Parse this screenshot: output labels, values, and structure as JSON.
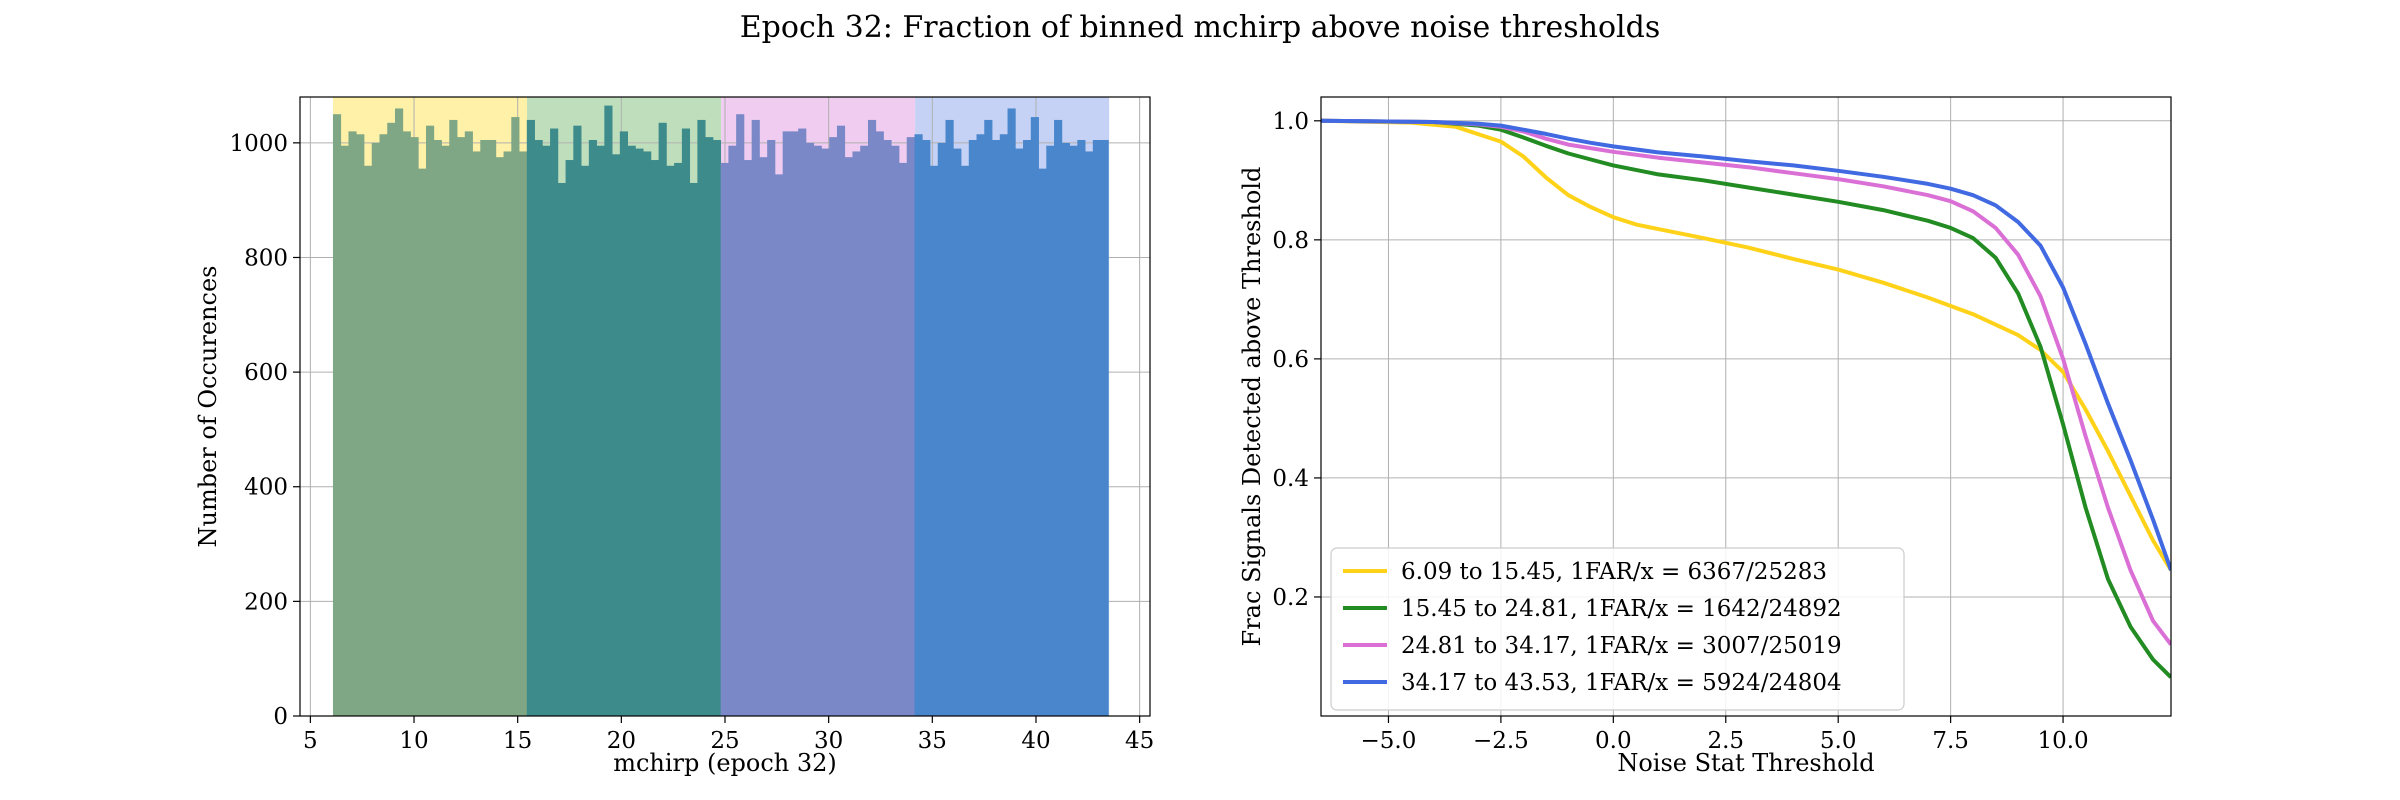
{
  "figure": {
    "title": "Epoch 32: Fraction of binned mchirp above noise thresholds"
  },
  "chart_data": [
    {
      "type": "bar",
      "xlabel": "mchirp (epoch 32)",
      "ylabel": "Number of Occurences",
      "xlim": [
        4.5,
        45.5
      ],
      "ylim": [
        0,
        1080
      ],
      "xticks": [
        5,
        10,
        15,
        20,
        25,
        30,
        35,
        40,
        45
      ],
      "yticks": [
        0,
        200,
        400,
        600,
        800,
        1000
      ],
      "grid": true,
      "bin_width": 0.374,
      "bands": [
        {
          "x0": 6.09,
          "x1": 15.45,
          "shade_color": "#fff1a8",
          "bar_color": "#7fa785"
        },
        {
          "x0": 15.45,
          "x1": 24.81,
          "shade_color": "#bfdfbc",
          "bar_color": "#3d8b8b"
        },
        {
          "x0": 24.81,
          "x1": 34.17,
          "shade_color": "#f0cdf0",
          "bar_color": "#7a88c8"
        },
        {
          "x0": 34.17,
          "x1": 43.53,
          "shade_color": "#c5d2f5",
          "bar_color": "#4a86cc"
        }
      ],
      "counts": [
        1050,
        995,
        1020,
        1015,
        960,
        1000,
        1015,
        1035,
        1060,
        1020,
        1010,
        955,
        1030,
        1005,
        995,
        1040,
        1010,
        1020,
        985,
        1005,
        1005,
        975,
        985,
        1045,
        985,
        1040,
        1005,
        995,
        1025,
        930,
        970,
        1030,
        960,
        1005,
        995,
        1065,
        980,
        1020,
        995,
        990,
        985,
        970,
        1035,
        960,
        965,
        1025,
        930,
        1040,
        1010,
        1005,
        965,
        995,
        1050,
        970,
        1040,
        975,
        1005,
        945,
        1020,
        1020,
        1025,
        1000,
        995,
        990,
        1010,
        1030,
        975,
        985,
        995,
        1040,
        1020,
        1005,
        995,
        965,
        1010,
        1015,
        1005,
        960,
        1000,
        1040,
        990,
        960,
        1005,
        1015,
        1040,
        1005,
        1015,
        1060,
        990,
        1005,
        1045,
        955,
        995,
        1040,
        1000,
        995,
        1005,
        985,
        1005,
        1005
      ]
    },
    {
      "type": "line",
      "xlabel": "Noise Stat Threshold",
      "ylabel": "Frac Signals Detected above Threshold",
      "xlim": [
        -6.5,
        12.4
      ],
      "ylim": [
        0.0,
        1.04
      ],
      "xticks": [
        -5.0,
        -2.5,
        0.0,
        2.5,
        5.0,
        7.5,
        10.0
      ],
      "yticks": [
        0.2,
        0.4,
        0.6,
        0.8,
        1.0
      ],
      "grid": true,
      "legend_position": "lower-left",
      "series": [
        {
          "name": "6.09 to 15.45, 1FAR/x = 6367/25283",
          "color": "#ffd21a",
          "x": [
            -6.5,
            -4.5,
            -3.5,
            -2.5,
            -2.0,
            -1.5,
            -1.0,
            -0.5,
            0.0,
            0.5,
            1.0,
            2.0,
            3.0,
            4.0,
            5.0,
            6.0,
            7.0,
            8.0,
            9.0,
            9.5,
            10.0,
            10.5,
            11.0,
            11.5,
            12.0,
            12.4
          ],
          "y": [
            1.0,
            0.997,
            0.99,
            0.965,
            0.94,
            0.905,
            0.875,
            0.855,
            0.838,
            0.826,
            0.818,
            0.803,
            0.787,
            0.768,
            0.75,
            0.728,
            0.703,
            0.675,
            0.64,
            0.615,
            0.578,
            0.515,
            0.445,
            0.37,
            0.295,
            0.245
          ]
        },
        {
          "name": "15.45 to 24.81, 1FAR/x = 1642/24892",
          "color": "#228b22",
          "x": [
            -6.5,
            -4.0,
            -3.0,
            -2.5,
            -2.0,
            -1.5,
            -1.0,
            -0.5,
            0.0,
            1.0,
            2.0,
            3.0,
            4.0,
            5.0,
            6.0,
            7.0,
            7.5,
            8.0,
            8.5,
            9.0,
            9.5,
            10.0,
            10.5,
            11.0,
            11.5,
            12.0,
            12.4
          ],
          "y": [
            1.0,
            0.998,
            0.992,
            0.985,
            0.972,
            0.958,
            0.945,
            0.935,
            0.925,
            0.91,
            0.9,
            0.888,
            0.876,
            0.864,
            0.85,
            0.832,
            0.82,
            0.803,
            0.77,
            0.71,
            0.62,
            0.49,
            0.35,
            0.23,
            0.15,
            0.095,
            0.065
          ]
        },
        {
          "name": "24.81 to 34.17, 1FAR/x = 3007/25019",
          "color": "#da70d6",
          "x": [
            -6.5,
            -4.0,
            -3.0,
            -2.5,
            -2.0,
            -1.5,
            -1.0,
            0.0,
            1.0,
            2.0,
            3.0,
            4.0,
            5.0,
            6.0,
            7.0,
            7.5,
            8.0,
            8.5,
            9.0,
            9.5,
            10.0,
            10.5,
            11.0,
            11.5,
            12.0,
            12.4
          ],
          "y": [
            1.0,
            0.998,
            0.994,
            0.99,
            0.982,
            0.97,
            0.96,
            0.948,
            0.938,
            0.93,
            0.922,
            0.912,
            0.902,
            0.89,
            0.875,
            0.865,
            0.848,
            0.82,
            0.775,
            0.705,
            0.6,
            0.47,
            0.35,
            0.245,
            0.16,
            0.12
          ]
        },
        {
          "name": "34.17 to 43.53, 1FAR/x = 5924/24804",
          "color": "#4169e1",
          "x": [
            -6.5,
            -4.0,
            -3.0,
            -2.5,
            -2.0,
            -1.5,
            -1.0,
            -0.5,
            0.0,
            1.0,
            2.0,
            3.0,
            4.0,
            5.0,
            6.0,
            7.0,
            7.5,
            8.0,
            8.5,
            9.0,
            9.5,
            10.0,
            10.5,
            11.0,
            11.5,
            12.0,
            12.4
          ],
          "y": [
            1.0,
            0.998,
            0.995,
            0.992,
            0.985,
            0.978,
            0.97,
            0.963,
            0.957,
            0.947,
            0.94,
            0.932,
            0.925,
            0.916,
            0.906,
            0.894,
            0.886,
            0.875,
            0.858,
            0.83,
            0.79,
            0.72,
            0.625,
            0.525,
            0.43,
            0.33,
            0.245
          ]
        }
      ]
    }
  ]
}
